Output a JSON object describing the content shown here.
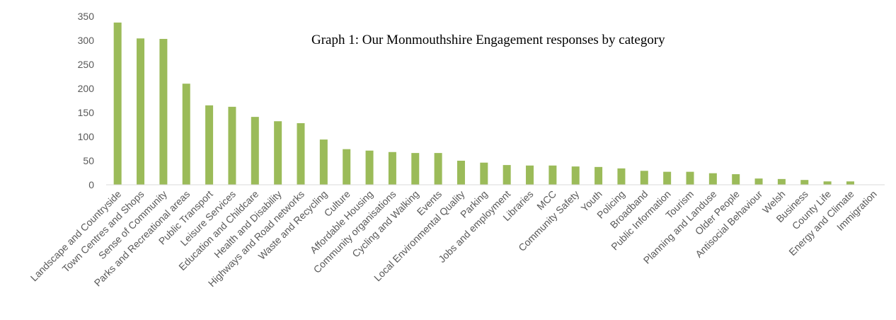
{
  "chart_data": {
    "type": "bar",
    "title": "Graph 1: Our Monmouthshire Engagement responses by category",
    "categories": [
      "Landscape and Countryside",
      "Town Centres and Shops",
      "Sense of Community",
      "Parks and Recreational areas",
      "Public Transport",
      "Leisure Services",
      "Education and Childcare",
      "Health and Disability",
      "Highways and Road networks",
      "Waste and Recycling",
      "Culture",
      "Affordable Housing",
      "Community organisations",
      "Cycling and Walking",
      "Events",
      "Local Environmental Quality",
      "Parking",
      "Jobs and employment",
      "Libraries",
      "MCC",
      "Community Safety",
      "Youth",
      "Policing",
      "Broadband",
      "Public Information",
      "Tourism",
      "Planning and Landuse",
      "Older People",
      "Antisocial Behaviour",
      "Welsh",
      "Business",
      "County Life",
      "Energy and Climate",
      "Immigration"
    ],
    "values": [
      337,
      304,
      303,
      210,
      165,
      162,
      141,
      132,
      128,
      94,
      74,
      71,
      68,
      66,
      66,
      50,
      46,
      41,
      40,
      40,
      38,
      37,
      34,
      29,
      27,
      27,
      24,
      22,
      13,
      12,
      10,
      7,
      7,
      0
    ],
    "color": "#9bbb59",
    "ylim": [
      0,
      350
    ],
    "yticks": [
      0,
      50,
      100,
      150,
      200,
      250,
      300,
      350
    ],
    "grid": false
  }
}
